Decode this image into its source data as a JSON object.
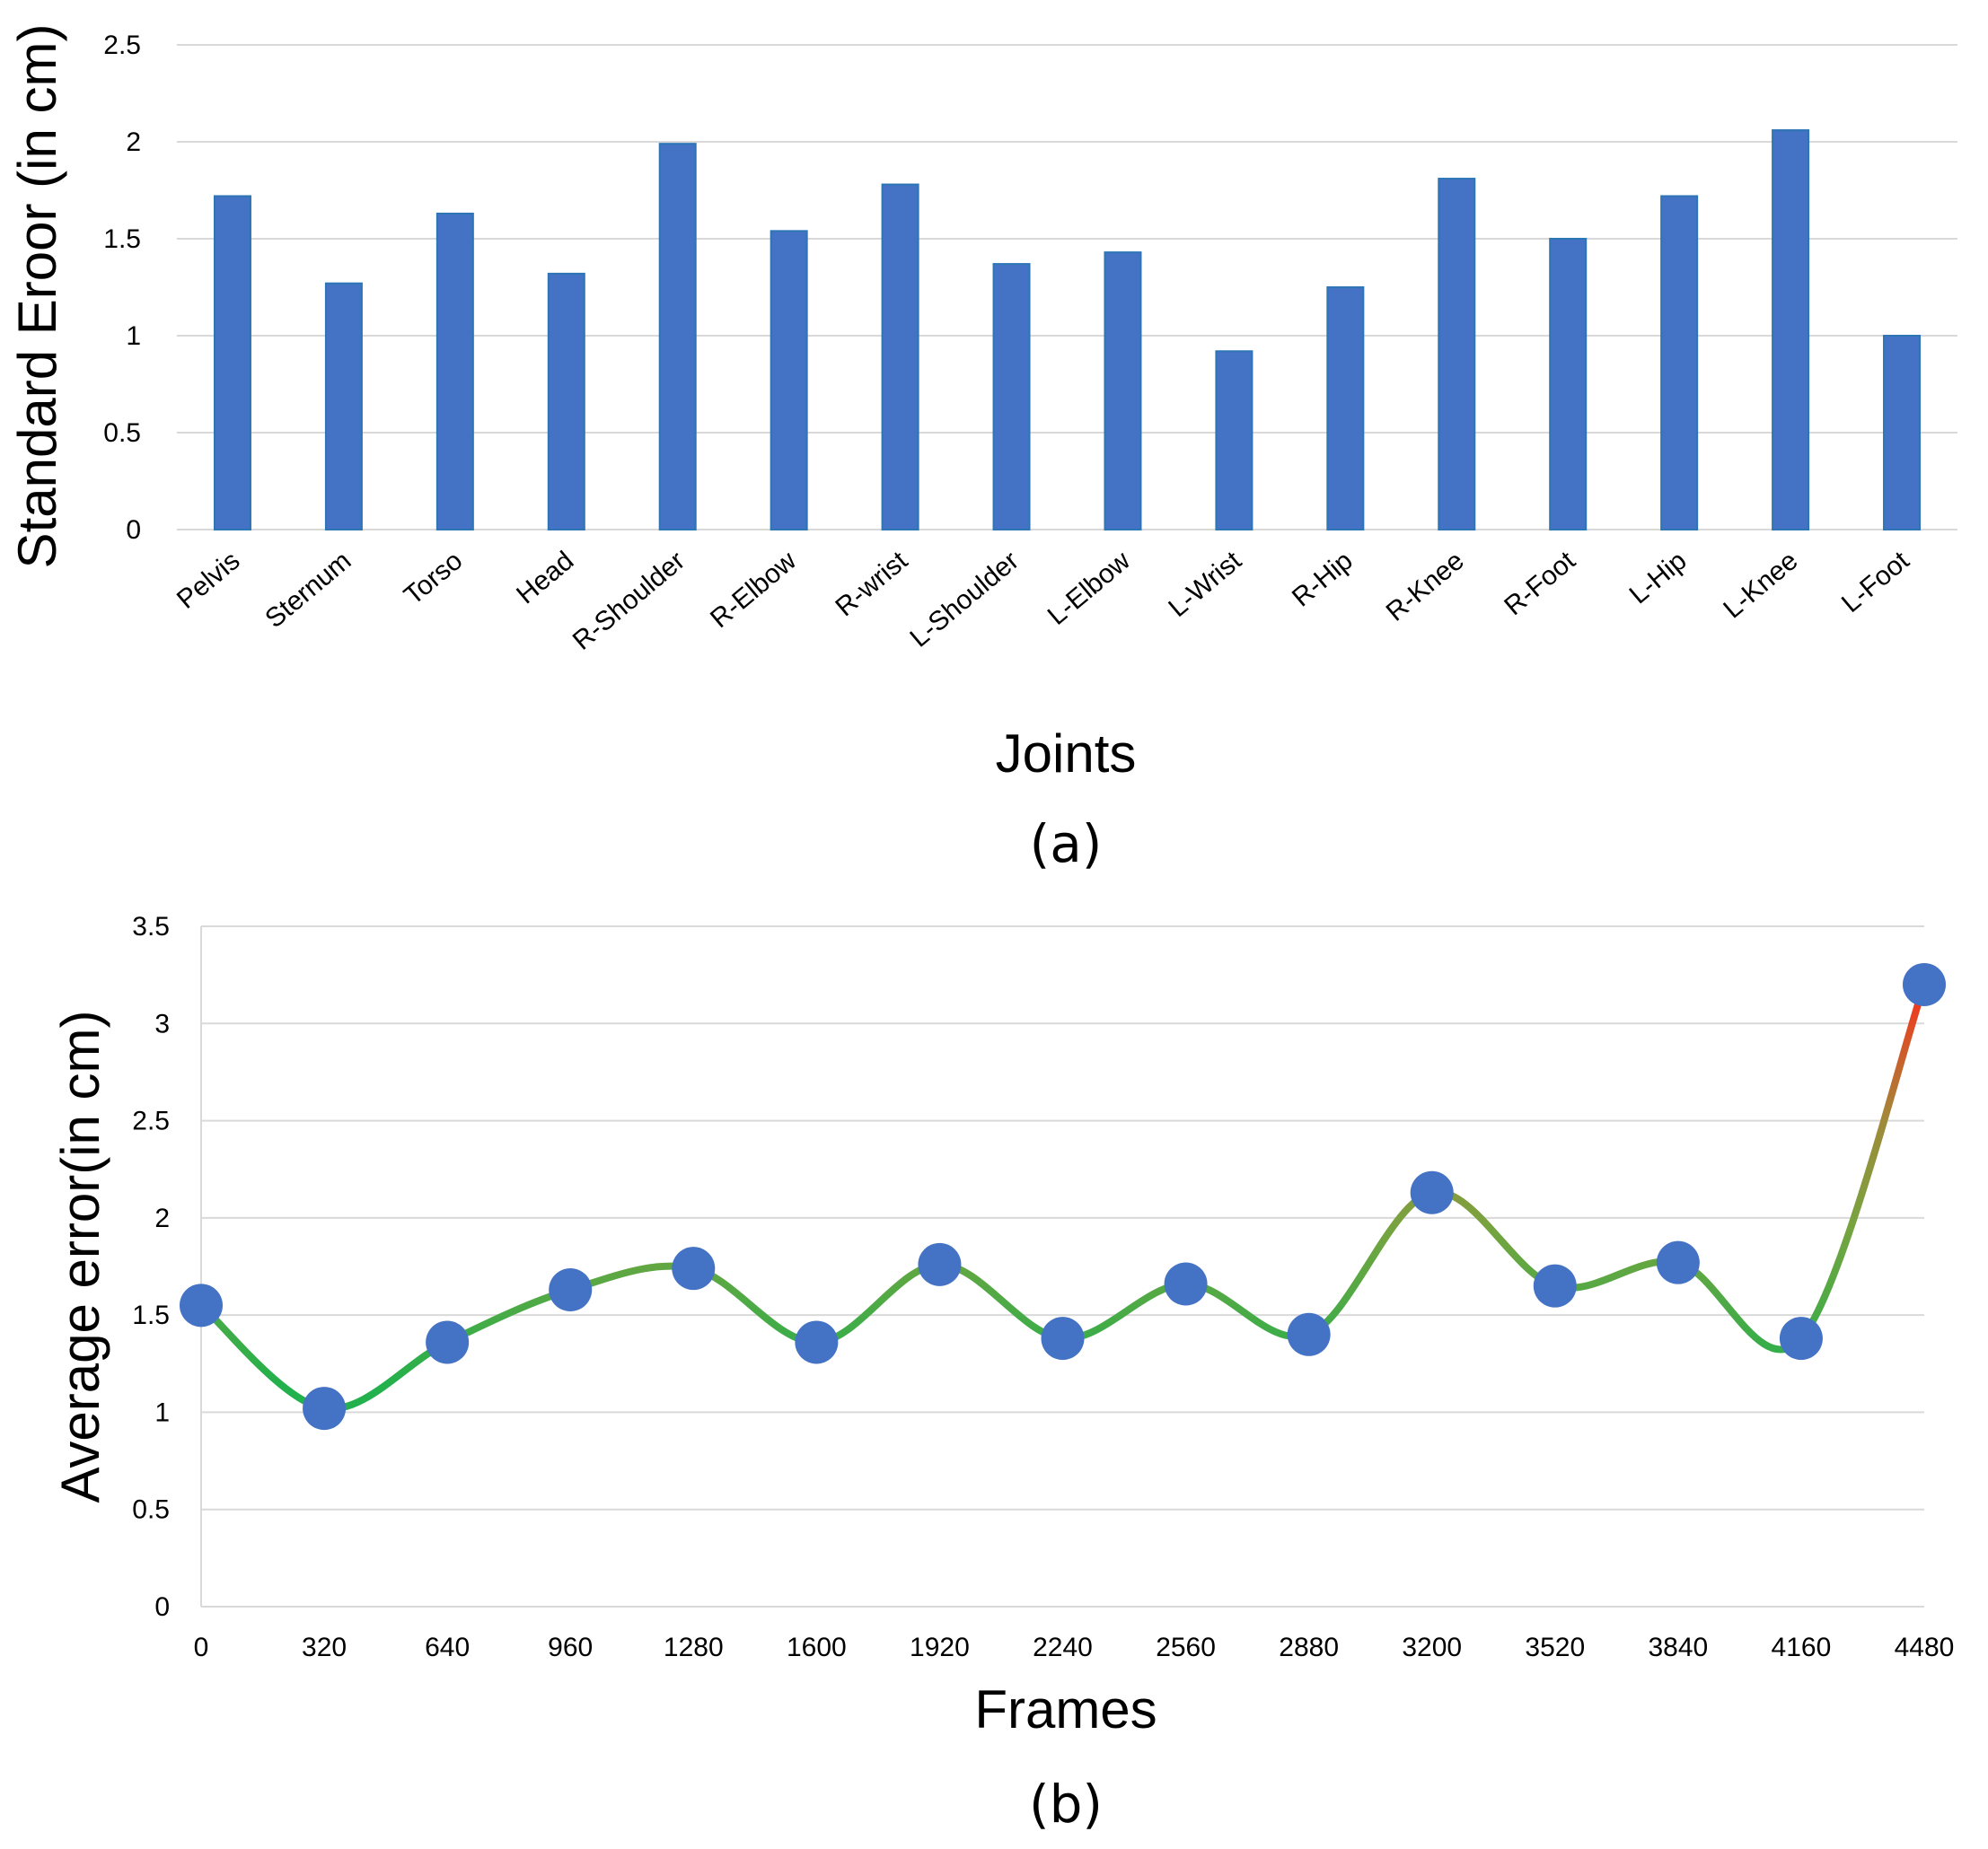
{
  "chart_data": [
    {
      "id": "a",
      "type": "bar",
      "caption": "(a)",
      "xlabel": "Joints",
      "ylabel": "Standard Eroor (in cm)",
      "ylim": [
        0,
        2.5
      ],
      "yticks": [
        "0",
        "0.5",
        "1",
        "1.5",
        "2",
        "2.5"
      ],
      "grid": true,
      "categories": [
        "Pelvis",
        "Sternum",
        "Torso",
        "Head",
        "R-Shoulder",
        "R-Elbow",
        "R-wrist",
        "L-Shoulder",
        "L-Elbow",
        "L-Wrist",
        "R-Hip",
        "R-Knee",
        "R-Foot",
        "L-Hip",
        "L-Knee",
        "L-Foot"
      ],
      "values": [
        1.72,
        1.27,
        1.63,
        1.32,
        1.99,
        1.54,
        1.78,
        1.37,
        1.43,
        0.92,
        1.25,
        1.81,
        1.5,
        1.72,
        2.06,
        1.0
      ],
      "bar_color": "#4472c4"
    },
    {
      "id": "b",
      "type": "line",
      "caption": "(b)",
      "xlabel": "Frames",
      "ylabel": "Average error(in cm)",
      "ylim": [
        0,
        3.5
      ],
      "yticks": [
        "0",
        "0.5",
        "1",
        "1.5",
        "2",
        "2.5",
        "3",
        "3.5"
      ],
      "grid": true,
      "x": [
        "0",
        "320",
        "640",
        "960",
        "1280",
        "1600",
        "1920",
        "2240",
        "2560",
        "2880",
        "3200",
        "3520",
        "3840",
        "4160",
        "4480"
      ],
      "y": [
        1.55,
        1.02,
        1.36,
        1.63,
        1.74,
        1.36,
        1.76,
        1.38,
        1.66,
        1.4,
        2.13,
        1.65,
        1.77,
        1.38,
        3.2
      ],
      "marker_color": "#4472c4",
      "line_gradient": [
        "#22b14c",
        "#7aa33f",
        "#a08a3a",
        "#ff2a1a"
      ]
    }
  ]
}
